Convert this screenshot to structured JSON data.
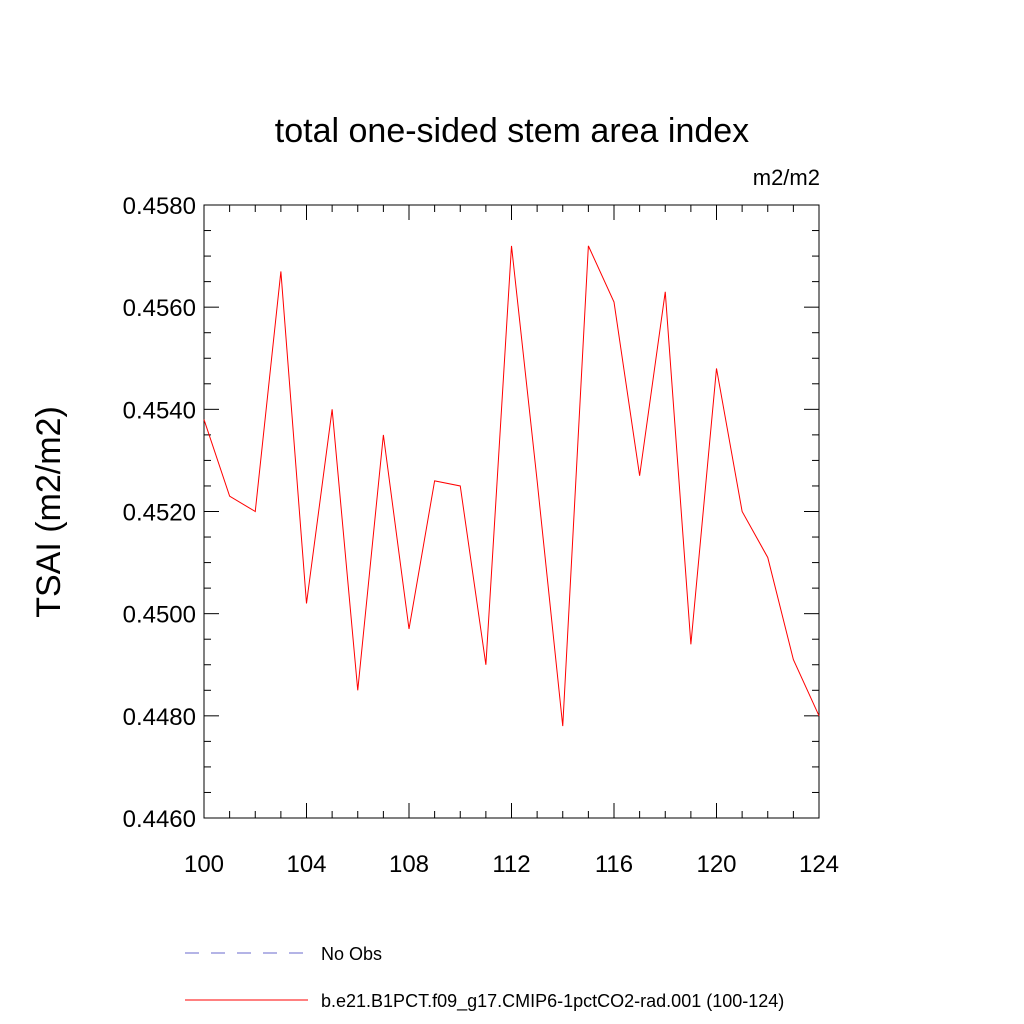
{
  "chart_data": {
    "type": "line",
    "title": "total one-sided stem area index",
    "units_label": "m2/m2",
    "ylabel": "TSAI  (m2/m2)",
    "xlabel": "",
    "xlim": [
      100,
      124
    ],
    "ylim": [
      0.446,
      0.458
    ],
    "x_ticks": [
      "100",
      "104",
      "108",
      "112",
      "116",
      "120",
      "124"
    ],
    "y_ticks": [
      "0.4460",
      "0.4480",
      "0.4500",
      "0.4520",
      "0.4540",
      "0.4560",
      "0.4580"
    ],
    "series": [
      {
        "name": "b.e21.B1PCT.f09_g17.CMIP6-1pctCO2-rad.001 (100-124)",
        "color": "#ff0000",
        "x": [
          100,
          101,
          102,
          103,
          104,
          105,
          106,
          107,
          108,
          109,
          110,
          111,
          112,
          113,
          114,
          115,
          116,
          117,
          118,
          119,
          120,
          121,
          122,
          123,
          124
        ],
        "y": [
          0.4538,
          0.4523,
          0.452,
          0.4567,
          0.4502,
          0.454,
          0.4485,
          0.4535,
          0.4497,
          0.4526,
          0.4525,
          0.449,
          0.4572,
          0.4526,
          0.4478,
          0.4572,
          0.4561,
          0.4527,
          0.4563,
          0.4494,
          0.4548,
          0.452,
          0.4511,
          0.4491,
          0.448
        ]
      }
    ],
    "legend": [
      {
        "label": "No Obs",
        "color": "#6a6acd",
        "style": "dashed"
      },
      {
        "label": "b.e21.B1PCT.f09_g17.CMIP6-1pctCO2-rad.001 (100-124)",
        "color": "#ff0000",
        "style": "solid"
      }
    ],
    "legend_position": "bottom",
    "grid": false
  }
}
